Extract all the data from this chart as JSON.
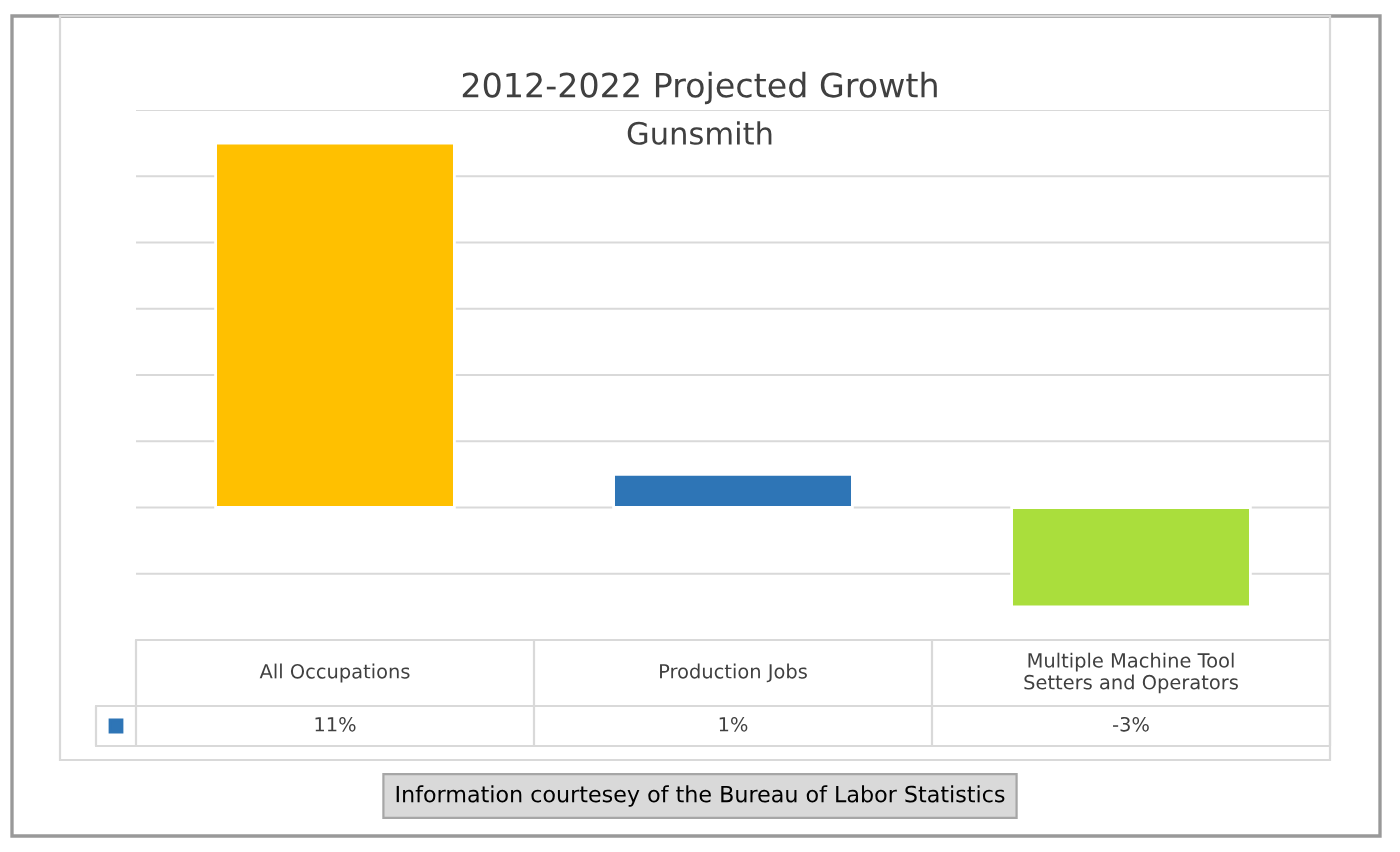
{
  "chart_data": {
    "type": "bar",
    "title": "2012-2022 Projected Growth",
    "subtitle": "Gunsmith",
    "categories": [
      "All Occupations",
      "Production Jobs",
      "Multiple Machine Tool Setters and Operators"
    ],
    "values": [
      11,
      1,
      -3
    ],
    "value_labels": [
      "11%",
      "1%",
      "-3%"
    ],
    "colors": [
      "#ffc000",
      "#2e75b6",
      "#aade3c"
    ],
    "ylim": [
      -4,
      12
    ],
    "yticks": [
      {
        "value": -4,
        "label": null
      },
      {
        "value": -2,
        "label": null
      },
      {
        "value": 0,
        "label": null
      },
      {
        "value": 2,
        "label": null
      },
      {
        "value": 4,
        "label": null
      },
      {
        "value": 6,
        "label": null
      },
      {
        "value": 8,
        "label": null
      },
      {
        "value": 10,
        "label": null
      },
      {
        "value": 12,
        "label": null
      }
    ],
    "grid": "y",
    "annotations": [
      "Information courtesey of the Bureau of Labor Statistics"
    ]
  }
}
